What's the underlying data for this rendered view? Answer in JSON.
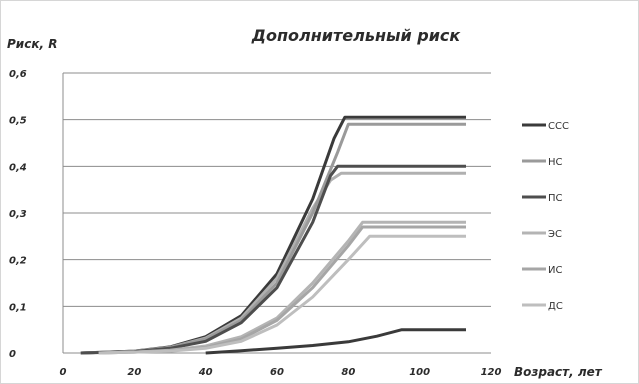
{
  "chart_data": {
    "type": "line",
    "title": "Дополнительный риск",
    "ylabel": "Риск,  R",
    "xlabel": "Возраст, лет",
    "xlim": [
      0,
      120
    ],
    "ylim": [
      0,
      0.6
    ],
    "x_ticks": [
      "0",
      "20",
      "40",
      "60",
      "80",
      "100",
      "120"
    ],
    "y_ticks": [
      "0",
      "0,1",
      "0,2",
      "0,3",
      "0,4",
      "0,5",
      "0,6"
    ],
    "grid": "horizontal",
    "legend_position": "right",
    "series": [
      {
        "name": "ССС",
        "color": "#3a3a3a",
        "points": [
          [
            40,
            0
          ],
          [
            50,
            0.005
          ],
          [
            60,
            0.01
          ],
          [
            70,
            0.016
          ],
          [
            80,
            0.024
          ],
          [
            88,
            0.036
          ],
          [
            95,
            0.05
          ],
          [
            113,
            0.05
          ]
        ]
      },
      {
        "name": "НС",
        "color": "#9a9a9a",
        "points": [
          [
            5,
            0
          ],
          [
            20,
            0.004
          ],
          [
            30,
            0.012
          ],
          [
            40,
            0.03
          ],
          [
            50,
            0.07
          ],
          [
            60,
            0.15
          ],
          [
            70,
            0.3
          ],
          [
            77,
            0.43
          ],
          [
            80,
            0.49
          ],
          [
            113,
            0.49
          ]
        ]
      },
      {
        "name": "ПС",
        "color": "#4e4e4e",
        "points": [
          [
            5,
            0
          ],
          [
            20,
            0.003
          ],
          [
            30,
            0.01
          ],
          [
            40,
            0.025
          ],
          [
            50,
            0.065
          ],
          [
            60,
            0.14
          ],
          [
            70,
            0.28
          ],
          [
            75,
            0.38
          ],
          [
            77,
            0.4
          ],
          [
            113,
            0.4
          ]
        ]
      },
      {
        "name": "ЭС",
        "color": "#b4b4b4",
        "points": [
          [
            10,
            0
          ],
          [
            20,
            0.002
          ],
          [
            30,
            0.006
          ],
          [
            40,
            0.015
          ],
          [
            50,
            0.035
          ],
          [
            60,
            0.075
          ],
          [
            70,
            0.15
          ],
          [
            80,
            0.24
          ],
          [
            84,
            0.28
          ],
          [
            113,
            0.28
          ]
        ]
      },
      {
        "name": "ИС",
        "color": "#a6a6a6",
        "points": [
          [
            10,
            0
          ],
          [
            20,
            0.002
          ],
          [
            30,
            0.005
          ],
          [
            40,
            0.012
          ],
          [
            50,
            0.03
          ],
          [
            60,
            0.07
          ],
          [
            70,
            0.14
          ],
          [
            80,
            0.23
          ],
          [
            84,
            0.27
          ],
          [
            113,
            0.27
          ]
        ]
      },
      {
        "name": "ДС",
        "color": "#bebebe",
        "points": [
          [
            10,
            0
          ],
          [
            20,
            0.002
          ],
          [
            30,
            0.004
          ],
          [
            40,
            0.01
          ],
          [
            50,
            0.025
          ],
          [
            60,
            0.06
          ],
          [
            70,
            0.12
          ],
          [
            80,
            0.2
          ],
          [
            86,
            0.25
          ],
          [
            113,
            0.25
          ]
        ]
      }
    ],
    "extra_lines": [
      {
        "color": "#3a3a3a",
        "points": [
          [
            5,
            0
          ],
          [
            20,
            0.004
          ],
          [
            30,
            0.013
          ],
          [
            40,
            0.035
          ],
          [
            50,
            0.08
          ],
          [
            60,
            0.17
          ],
          [
            70,
            0.33
          ],
          [
            76,
            0.46
          ],
          [
            79,
            0.505
          ],
          [
            113,
            0.505
          ]
        ]
      },
      {
        "color": "#b0b0b0",
        "points": [
          [
            5,
            0
          ],
          [
            20,
            0.003
          ],
          [
            30,
            0.012
          ],
          [
            40,
            0.032
          ],
          [
            50,
            0.075
          ],
          [
            60,
            0.16
          ],
          [
            70,
            0.31
          ],
          [
            75,
            0.37
          ],
          [
            78,
            0.385
          ],
          [
            113,
            0.385
          ]
        ]
      }
    ]
  }
}
